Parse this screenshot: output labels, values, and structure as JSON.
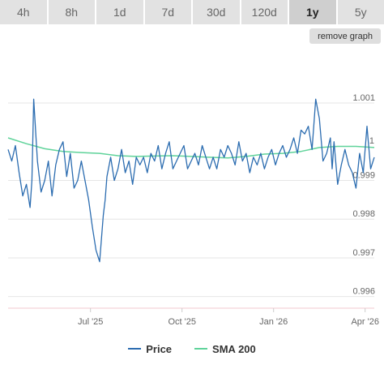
{
  "tabs": [
    {
      "label": "4h",
      "active": false
    },
    {
      "label": "8h",
      "active": false
    },
    {
      "label": "1d",
      "active": false
    },
    {
      "label": "7d",
      "active": false
    },
    {
      "label": "30d",
      "active": false
    },
    {
      "label": "120d",
      "active": false
    },
    {
      "label": "1y",
      "active": true
    },
    {
      "label": "5y",
      "active": false
    }
  ],
  "remove_graph_label": "remove graph",
  "legend": {
    "price_label": "Price",
    "sma_label": "SMA 200"
  },
  "colors": {
    "price": "#2b6cb0",
    "sma": "#5fd39a",
    "axis_bottom": "#f3c9cf"
  },
  "chart_data": {
    "type": "line",
    "y_ticks": [
      "1.001",
      "0.999",
      "0.998",
      "0.997",
      "0.996"
    ],
    "y_tick_values": [
      1.001,
      0.999,
      0.998,
      0.997,
      0.996
    ],
    "x_ticks": [
      "Jul '25",
      "Oct '25",
      "Jan '26",
      "Apr '26"
    ],
    "x_tick_positions": [
      0.225,
      0.475,
      0.725,
      0.975
    ],
    "ylim": [
      0.9957,
      1.0023
    ],
    "extra_label": "1",
    "series": [
      {
        "name": "Price",
        "color": "#2b6cb0",
        "x": [
          0.0,
          0.01,
          0.02,
          0.03,
          0.04,
          0.05,
          0.06,
          0.065,
          0.07,
          0.08,
          0.09,
          0.1,
          0.11,
          0.12,
          0.13,
          0.14,
          0.15,
          0.16,
          0.17,
          0.18,
          0.19,
          0.2,
          0.21,
          0.22,
          0.23,
          0.24,
          0.25,
          0.26,
          0.265,
          0.27,
          0.28,
          0.29,
          0.3,
          0.31,
          0.32,
          0.33,
          0.34,
          0.35,
          0.36,
          0.37,
          0.38,
          0.39,
          0.4,
          0.41,
          0.42,
          0.43,
          0.44,
          0.45,
          0.46,
          0.47,
          0.48,
          0.49,
          0.5,
          0.51,
          0.52,
          0.53,
          0.54,
          0.55,
          0.56,
          0.57,
          0.58,
          0.59,
          0.6,
          0.61,
          0.62,
          0.63,
          0.64,
          0.65,
          0.66,
          0.67,
          0.68,
          0.69,
          0.7,
          0.71,
          0.72,
          0.73,
          0.74,
          0.75,
          0.76,
          0.77,
          0.78,
          0.79,
          0.8,
          0.81,
          0.82,
          0.83,
          0.84,
          0.85,
          0.86,
          0.87,
          0.88,
          0.885,
          0.89,
          0.9,
          0.91,
          0.92,
          0.93,
          0.94,
          0.95,
          0.96,
          0.97,
          0.98,
          0.99,
          1.0
        ],
        "y": [
          0.9998,
          0.9995,
          0.9999,
          0.9992,
          0.9986,
          0.9989,
          0.9983,
          0.999,
          1.0011,
          0.9995,
          0.9987,
          0.999,
          0.9995,
          0.9986,
          0.9994,
          0.9998,
          1.0,
          0.9991,
          0.9997,
          0.9988,
          0.999,
          0.9995,
          0.999,
          0.9985,
          0.9978,
          0.9972,
          0.9969,
          0.9981,
          0.9985,
          0.9991,
          0.9996,
          0.999,
          0.9993,
          0.9998,
          0.9992,
          0.9995,
          0.9989,
          0.9996,
          0.9994,
          0.9996,
          0.9992,
          0.9997,
          0.9995,
          0.9999,
          0.9993,
          0.9997,
          1.0,
          0.9993,
          0.9995,
          0.9997,
          0.9999,
          0.9993,
          0.9995,
          0.9997,
          0.9994,
          0.9999,
          0.9996,
          0.9993,
          0.9996,
          0.9993,
          0.9998,
          0.9996,
          0.9999,
          0.9997,
          0.9994,
          1.0,
          0.9995,
          0.9997,
          0.9992,
          0.9996,
          0.9994,
          0.9997,
          0.9993,
          0.9996,
          0.9998,
          0.9994,
          0.9997,
          0.9999,
          0.9996,
          0.9998,
          1.0001,
          0.9997,
          1.0003,
          1.0002,
          1.0004,
          0.9998,
          1.0011,
          1.0006,
          0.9995,
          0.9997,
          1.0001,
          0.9993,
          1.0,
          0.9989,
          0.9994,
          0.9998,
          0.9994,
          0.9992,
          0.9988,
          0.9997,
          0.9992,
          1.0004,
          0.9993,
          0.9996
        ]
      },
      {
        "name": "SMA 200",
        "color": "#5fd39a",
        "x": [
          0.0,
          0.05,
          0.1,
          0.15,
          0.2,
          0.25,
          0.3,
          0.35,
          0.4,
          0.45,
          0.5,
          0.55,
          0.6,
          0.65,
          0.7,
          0.75,
          0.8,
          0.85,
          0.9,
          0.95,
          1.0
        ],
        "y": [
          1.0001,
          0.99995,
          0.99982,
          0.99975,
          0.99972,
          0.9997,
          0.99964,
          0.99962,
          0.99963,
          0.99964,
          0.99962,
          0.9996,
          0.99958,
          0.99962,
          0.99968,
          0.9997,
          0.99975,
          0.99985,
          0.99988,
          0.99988,
          0.99985
        ]
      }
    ]
  }
}
